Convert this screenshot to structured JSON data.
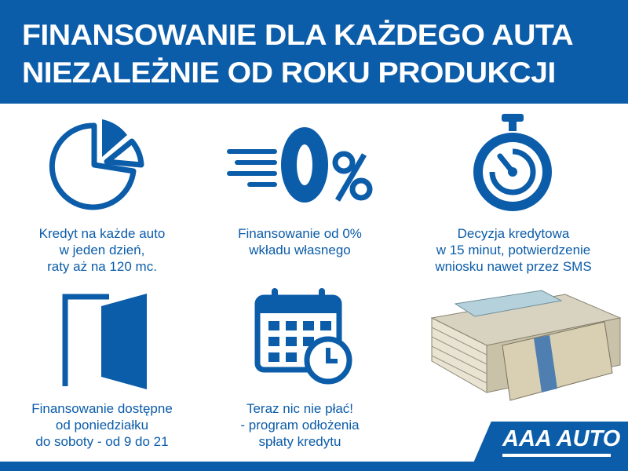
{
  "header": {
    "line1": "FINANSOWANIE DLA KAŻDEGO AUTA",
    "line2": "NIEZALEŻNIE OD ROKU PRODUKCJI"
  },
  "features": [
    {
      "icon": "pie-chart-icon",
      "lines": [
        "Kredyt na każde auto",
        "w jeden dzień,",
        "raty aż na 120 mc."
      ]
    },
    {
      "icon": "zero-percent-icon",
      "percent": "0%",
      "lines": [
        "Finansowanie od 0%",
        "wkładu własnego"
      ]
    },
    {
      "icon": "stopwatch-icon",
      "lines": [
        "Decyzja kredytowa",
        "w 15 minut, potwierdzenie",
        "wniosku nawet przez SMS"
      ]
    },
    {
      "icon": "door-icon",
      "lines": [
        "Finansowanie dostępne",
        "od poniedziałku",
        "do soboty - od 9 do 21"
      ]
    },
    {
      "icon": "calendar-clock-icon",
      "lines": [
        "Teraz nic nie płać!",
        "- program odłożenia",
        "spłaty kredytu"
      ]
    }
  ],
  "logo": "AAA AUTO",
  "colors": {
    "brand": "#0b5ca9",
    "background": "#ffffff"
  }
}
